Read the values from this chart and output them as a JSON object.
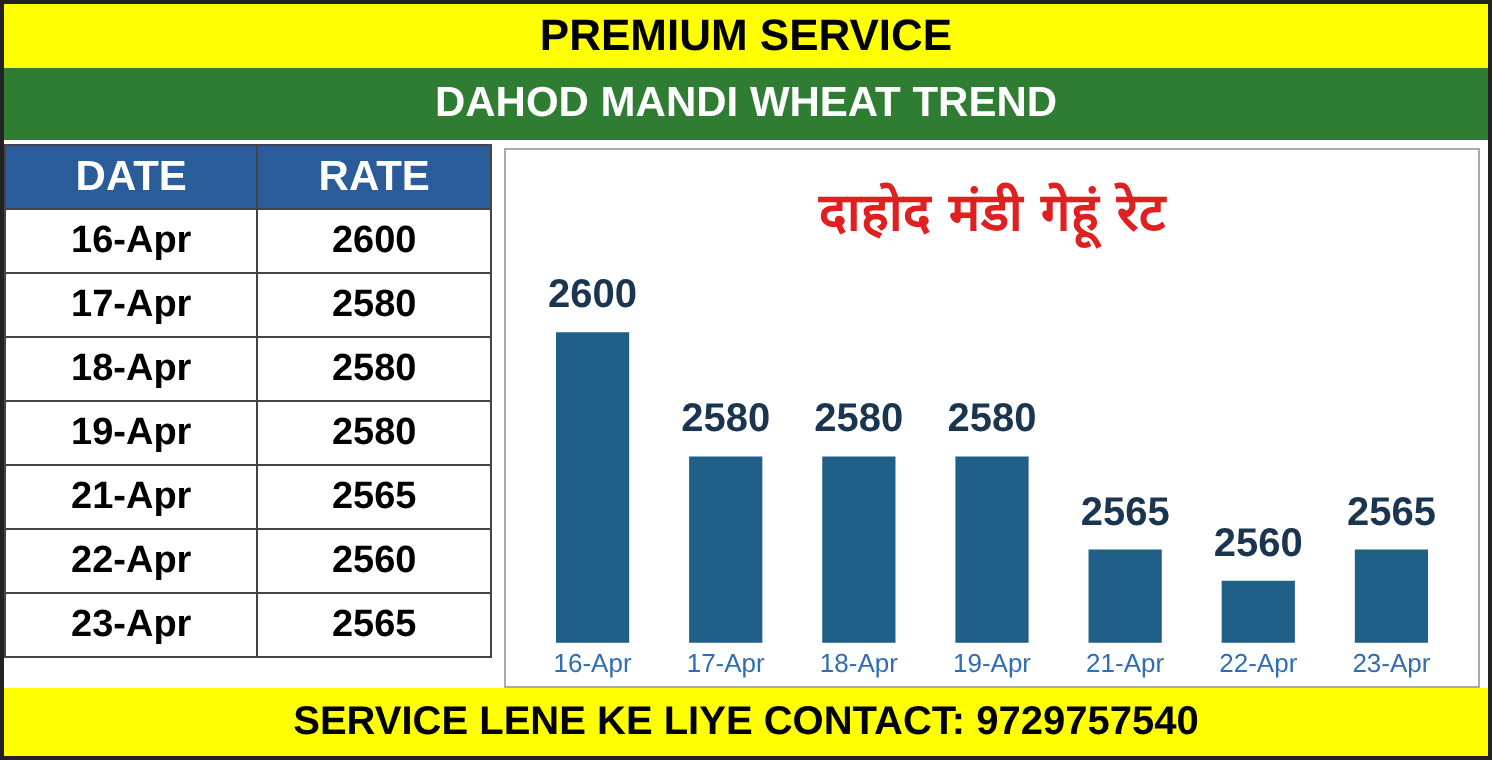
{
  "chart_data": [
    {
      "type": "bar",
      "title": "दाहोद मंडी गेहूं रेट",
      "subtitle": "DAHOD MANDI WHEAT TREND",
      "categories": [
        "16-Apr",
        "17-Apr",
        "18-Apr",
        "19-Apr",
        "21-Apr",
        "22-Apr",
        "23-Apr"
      ],
      "values": [
        2600,
        2580,
        2580,
        2580,
        2565,
        2560,
        2565
      ],
      "color": "#1f5f88",
      "data_labels": true,
      "grid": false,
      "legend": false,
      "annotations": [
        "PREMIUM SERVICE",
        "SERVICE LENE KE LIYE CONTACT: 9729757540"
      ]
    },
    {
      "type": "other",
      "categories": [
        "16-Apr",
        "17-Apr",
        "18-Apr",
        "19-Apr",
        "21-Apr",
        "22-Apr",
        "23-Apr"
      ],
      "values": [
        2600,
        2580,
        2580,
        2580,
        2565,
        2560,
        2565
      ],
      "data_labels": true,
      "annotations": [
        "DATE",
        "RATE"
      ]
    }
  ]
}
